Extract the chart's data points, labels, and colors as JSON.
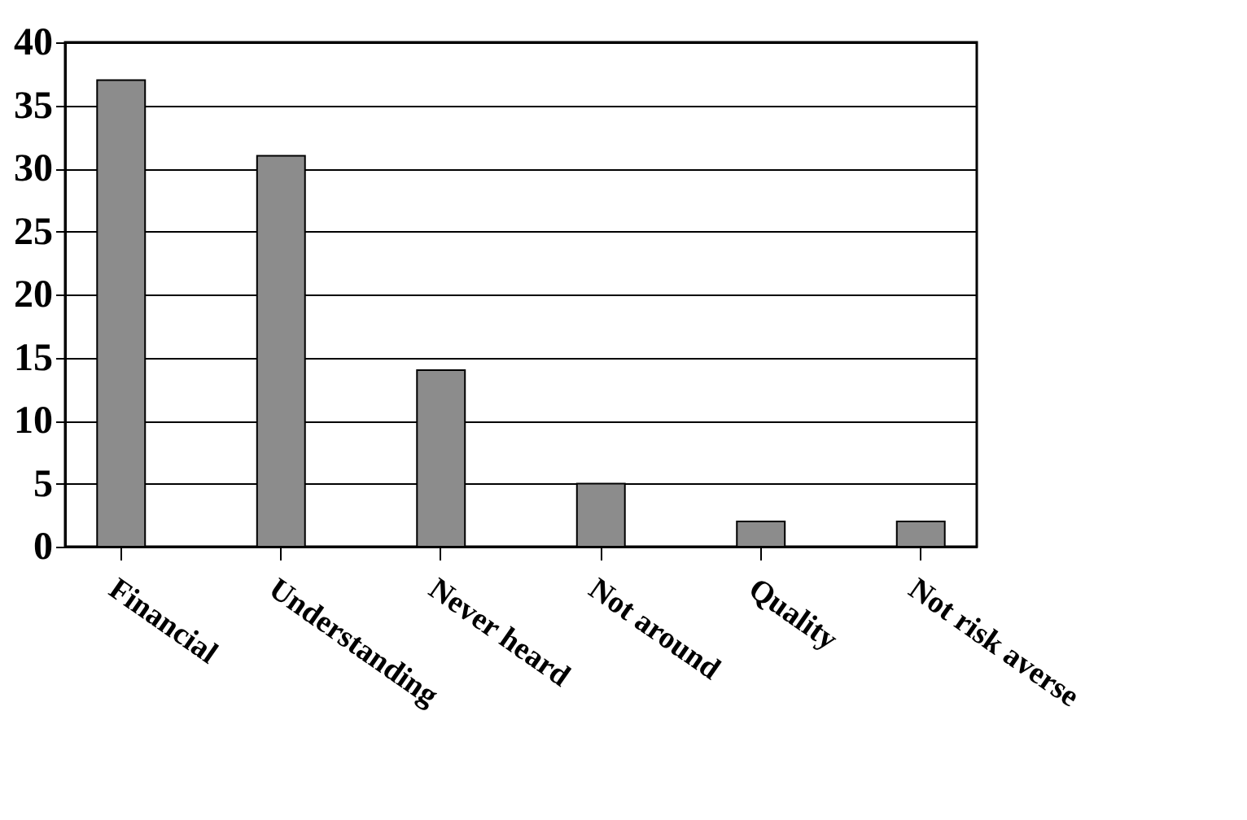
{
  "chart_data": {
    "type": "bar",
    "categories": [
      "Financial",
      "Understanding",
      "Never heard",
      "Not around",
      "Quality",
      "Not risk averse"
    ],
    "values": [
      37,
      31,
      14,
      5,
      2,
      2
    ],
    "color": "#8c8c8c",
    "ylim": [
      0,
      40
    ],
    "yticks": [
      0,
      5,
      10,
      15,
      20,
      25,
      30,
      35,
      40
    ],
    "grid": "y"
  }
}
